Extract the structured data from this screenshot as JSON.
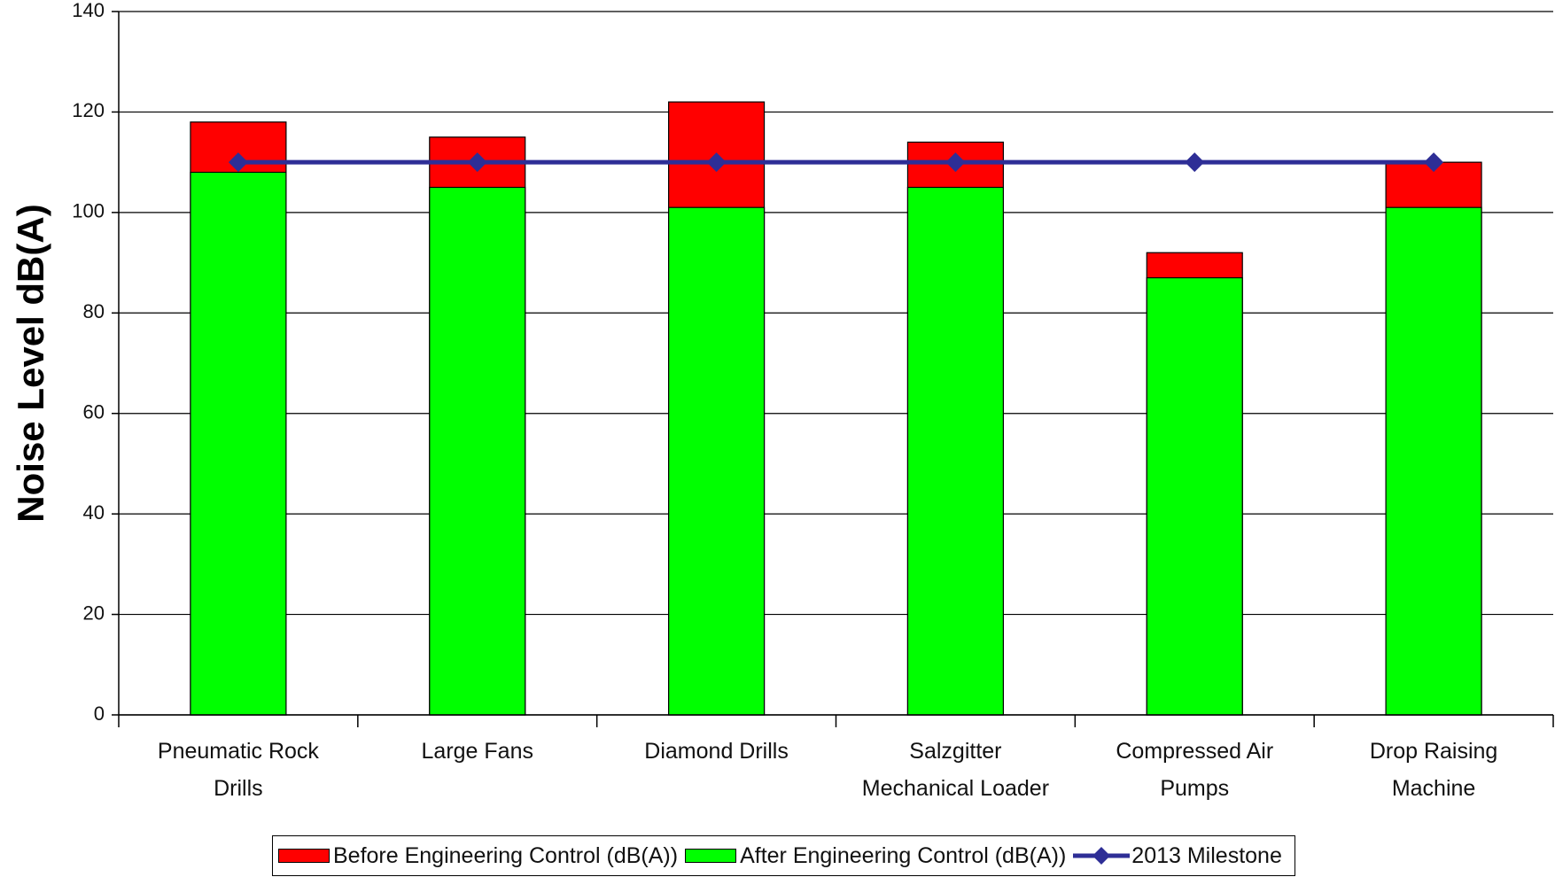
{
  "chart_data": {
    "type": "bar",
    "y_label": "Noise Level dB(A)",
    "categories": [
      "Pneumatic Rock\nDrills",
      "Large Fans",
      "Diamond Drills",
      "Salzgitter\nMechanical Loader",
      "Compressed Air\nPumps",
      "Drop Raising\nMachine"
    ],
    "series": [
      {
        "name": "Before Engineering Control (dB(A))",
        "color": "#ff0000",
        "type": "bar",
        "values": [
          118,
          115,
          122,
          114,
          92,
          110
        ]
      },
      {
        "name": "After Engineering Control (dB(A))",
        "color": "#00ff00",
        "type": "bar",
        "values": [
          108,
          105,
          101,
          105,
          87,
          101
        ]
      },
      {
        "name": "2013 Milestone",
        "color": "#2e2e96",
        "type": "line",
        "values": [
          110,
          110,
          110,
          110,
          110,
          110
        ]
      }
    ],
    "ylim": [
      0,
      140
    ],
    "yticks": [
      0,
      20,
      40,
      60,
      80,
      100,
      120,
      140
    ],
    "grid": true
  }
}
